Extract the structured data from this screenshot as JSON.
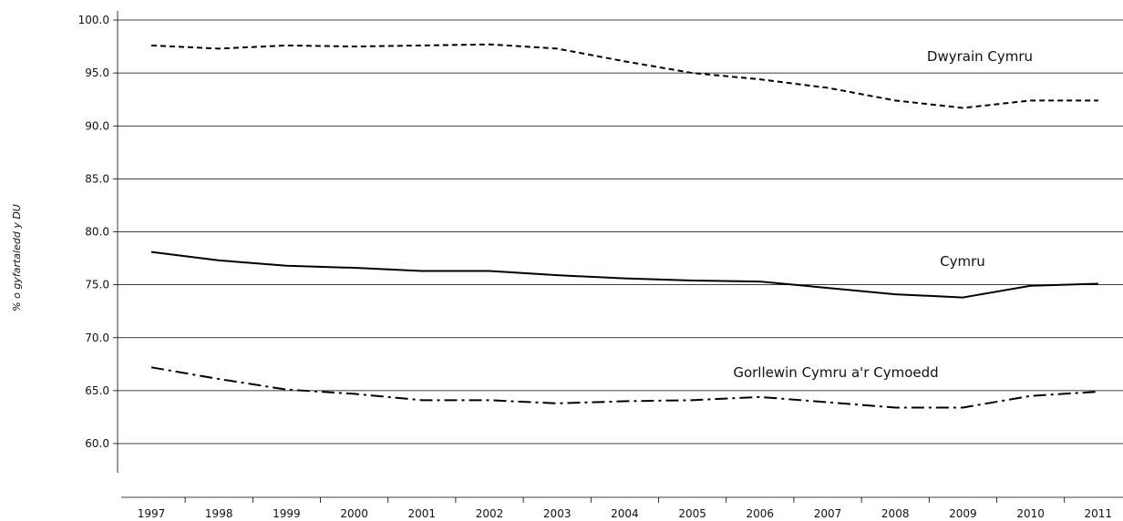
{
  "chart_data": {
    "type": "line",
    "title": "",
    "xlabel": "",
    "ylabel": "% o gyfartaledd y DU",
    "ylim": [
      55,
      100
    ],
    "yticks": [
      "60.0",
      "65.0",
      "70.0",
      "75.0",
      "80.0",
      "85.0",
      "90.0",
      "95.0",
      "100.0"
    ],
    "grid": true,
    "legend": "inline labels",
    "x": [
      "1997",
      "1998",
      "1999",
      "2000",
      "2001",
      "2002",
      "2003",
      "2004",
      "2005",
      "2006",
      "2007",
      "2008",
      "2009",
      "2010",
      "2011"
    ],
    "series": [
      {
        "name": "Dwyrain Cymru",
        "style": "dashed",
        "color": "#000000",
        "values": [
          97.6,
          97.3,
          97.6,
          97.5,
          97.6,
          97.7,
          97.3,
          96.1,
          95.0,
          94.4,
          93.6,
          92.4,
          91.7,
          92.4,
          92.4
        ]
      },
      {
        "name": "Cymru",
        "style": "solid",
        "color": "#000000",
        "values": [
          78.1,
          77.3,
          76.8,
          76.6,
          76.3,
          76.3,
          75.9,
          75.6,
          75.4,
          75.3,
          74.7,
          74.1,
          73.8,
          74.9,
          75.1
        ]
      },
      {
        "name": "Gorllewin Cymru a'r Cymoedd",
        "style": "dash-dot",
        "color": "#000000",
        "values": [
          67.2,
          66.1,
          65.1,
          64.7,
          64.1,
          64.1,
          63.8,
          64.0,
          64.1,
          64.4,
          63.9,
          63.4,
          63.4,
          64.5,
          64.9
        ]
      }
    ]
  }
}
